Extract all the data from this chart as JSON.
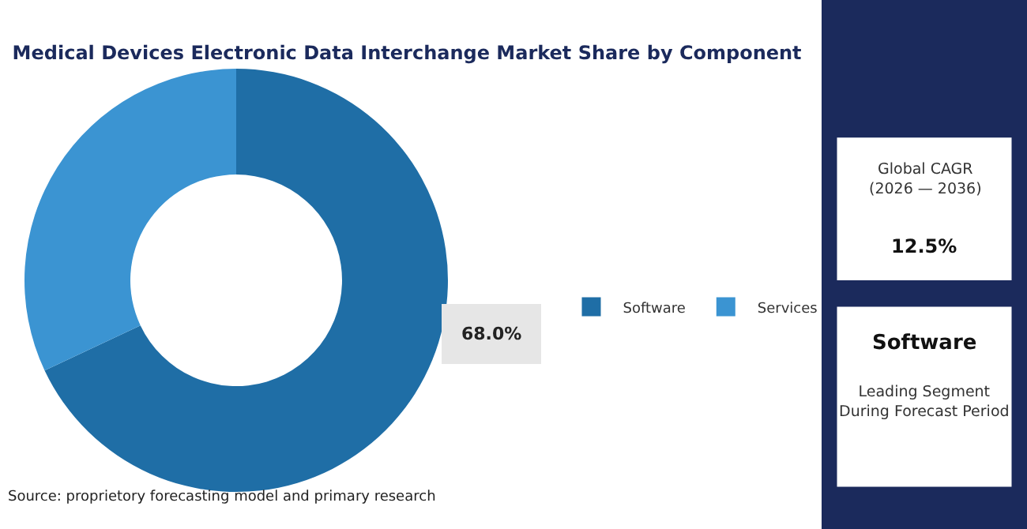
{
  "chart_data": {
    "type": "donut",
    "title": "Medical Devices Electronic Data Interchange Market Share by Component",
    "categories": [
      "Software",
      "Services"
    ],
    "values": [
      68.0,
      32.0
    ],
    "colors": [
      "#1f6ea6",
      "#3b94d2"
    ],
    "value_labels": [
      "68.0%",
      null
    ],
    "legend": "right",
    "annotations": [
      "Source: proprietory forecasting model and primary research",
      "Global CAGR\n(2026 — 2036)",
      "12.5%",
      "Software",
      "Leading Segment\nDuring Forecast Period"
    ]
  }
}
